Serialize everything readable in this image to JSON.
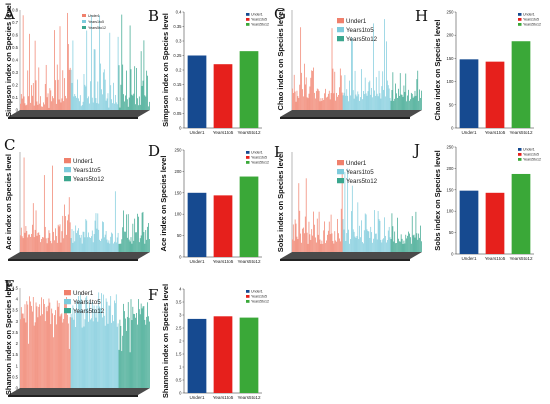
{
  "colors": {
    "under1": "#f0806c",
    "years1to5": "#7ecbdc",
    "years5to12": "#3aa68e",
    "bar1": "#164a90",
    "bar2": "#e6201c",
    "bar3": "#3aa838"
  },
  "legend": [
    "Under1",
    "Years1to5",
    "Years5to12"
  ],
  "bar_legend": [
    "Under1",
    "Years1to5",
    "Years5to12"
  ],
  "panels": [
    {
      "letter": "A",
      "ylabel": "Simpson index on Species level",
      "ticks": [
        "0",
        "0.1",
        "0.2",
        "0.3",
        "0.4",
        "0.5",
        "0.6",
        "0.7",
        "0.8"
      ]
    },
    {
      "letter": "C",
      "ylabel": "Ace index on Species level",
      "ticks": []
    },
    {
      "letter": "E",
      "ylabel": "Shannon index on Species level",
      "ticks": [
        "0",
        "0.5",
        "1",
        "1.5",
        "2",
        "2.5",
        "3",
        "3.5",
        "4",
        "4.5"
      ]
    },
    {
      "letter": "G",
      "ylabel": "Chao index on Species level",
      "ticks": []
    },
    {
      "letter": "I",
      "ylabel": "Sobs index on Species level",
      "ticks": []
    }
  ],
  "chart_data": [
    {
      "type": "bar",
      "letter": "B",
      "ylabel": "Simpson index on Species level",
      "categories": [
        "Under1",
        "Years1to5",
        "Years5to12"
      ],
      "values": [
        0.25,
        0.22,
        0.265
      ],
      "ylim": [
        0,
        0.4
      ],
      "ticks": [
        0,
        0.05,
        0.1,
        0.15,
        0.2,
        0.25,
        0.3,
        0.35,
        0.4
      ]
    },
    {
      "type": "bar",
      "letter": "H",
      "ylabel": "Chao index on Species level",
      "categories": [
        "Under1",
        "Years1to5",
        "Years5to12"
      ],
      "values": [
        148,
        143,
        187
      ],
      "ylim": [
        0,
        250
      ],
      "ticks": [
        0,
        50,
        100,
        150,
        200,
        250
      ]
    },
    {
      "type": "bar",
      "letter": "D",
      "ylabel": "Ace index on Species level",
      "categories": [
        "Under1",
        "Years1to5",
        "Years5to12"
      ],
      "values": [
        150,
        144,
        188
      ],
      "ylim": [
        0,
        250
      ],
      "ticks": [
        0,
        50,
        100,
        150,
        200,
        250
      ]
    },
    {
      "type": "bar",
      "letter": "J",
      "ylabel": "Sobs index on Species level",
      "categories": [
        "Under1",
        "Years1to5",
        "Years5to12"
      ],
      "values": [
        148,
        143,
        187
      ],
      "ylim": [
        0,
        250
      ],
      "ticks": [
        0,
        50,
        100,
        150,
        200,
        250
      ]
    },
    {
      "type": "bar",
      "letter": "F",
      "ylabel": "Shannon index on Species level",
      "categories": [
        "Under1",
        "Years1to5",
        "Years5to12"
      ],
      "values": [
        2.85,
        2.95,
        2.9
      ],
      "ylim": [
        0,
        4
      ],
      "ticks": [
        0,
        0.5,
        1,
        1.5,
        2,
        2.5,
        3,
        3.5,
        4
      ]
    }
  ]
}
